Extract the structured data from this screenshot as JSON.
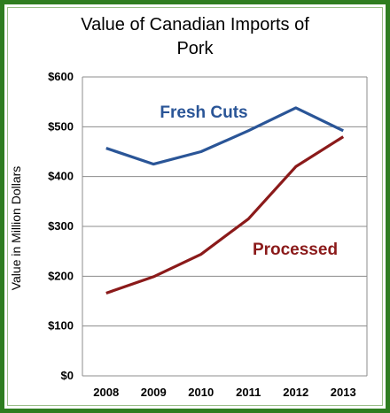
{
  "chart_data": {
    "type": "line",
    "title_line1": "Value of Canadian Imports of",
    "title_line2": "Pork",
    "ylabel": "Value in Million Dollars",
    "xlabel": "",
    "categories": [
      "2008",
      "2009",
      "2010",
      "2011",
      "2012",
      "2013"
    ],
    "ylim": [
      0,
      600
    ],
    "yticks": [
      0,
      100,
      200,
      300,
      400,
      500,
      600
    ],
    "ytick_labels": [
      "$0",
      "$100",
      "$200",
      "$300",
      "$400",
      "$500",
      "$600"
    ],
    "grid": "horizontal",
    "series": [
      {
        "name": "Fresh Cuts",
        "color": "#2a5597",
        "values": [
          457,
          425,
          450,
          492,
          538,
          492
        ]
      },
      {
        "name": "Processed",
        "color": "#8b1a1a",
        "values": [
          166,
          199,
          244,
          315,
          420,
          480
        ]
      }
    ]
  }
}
